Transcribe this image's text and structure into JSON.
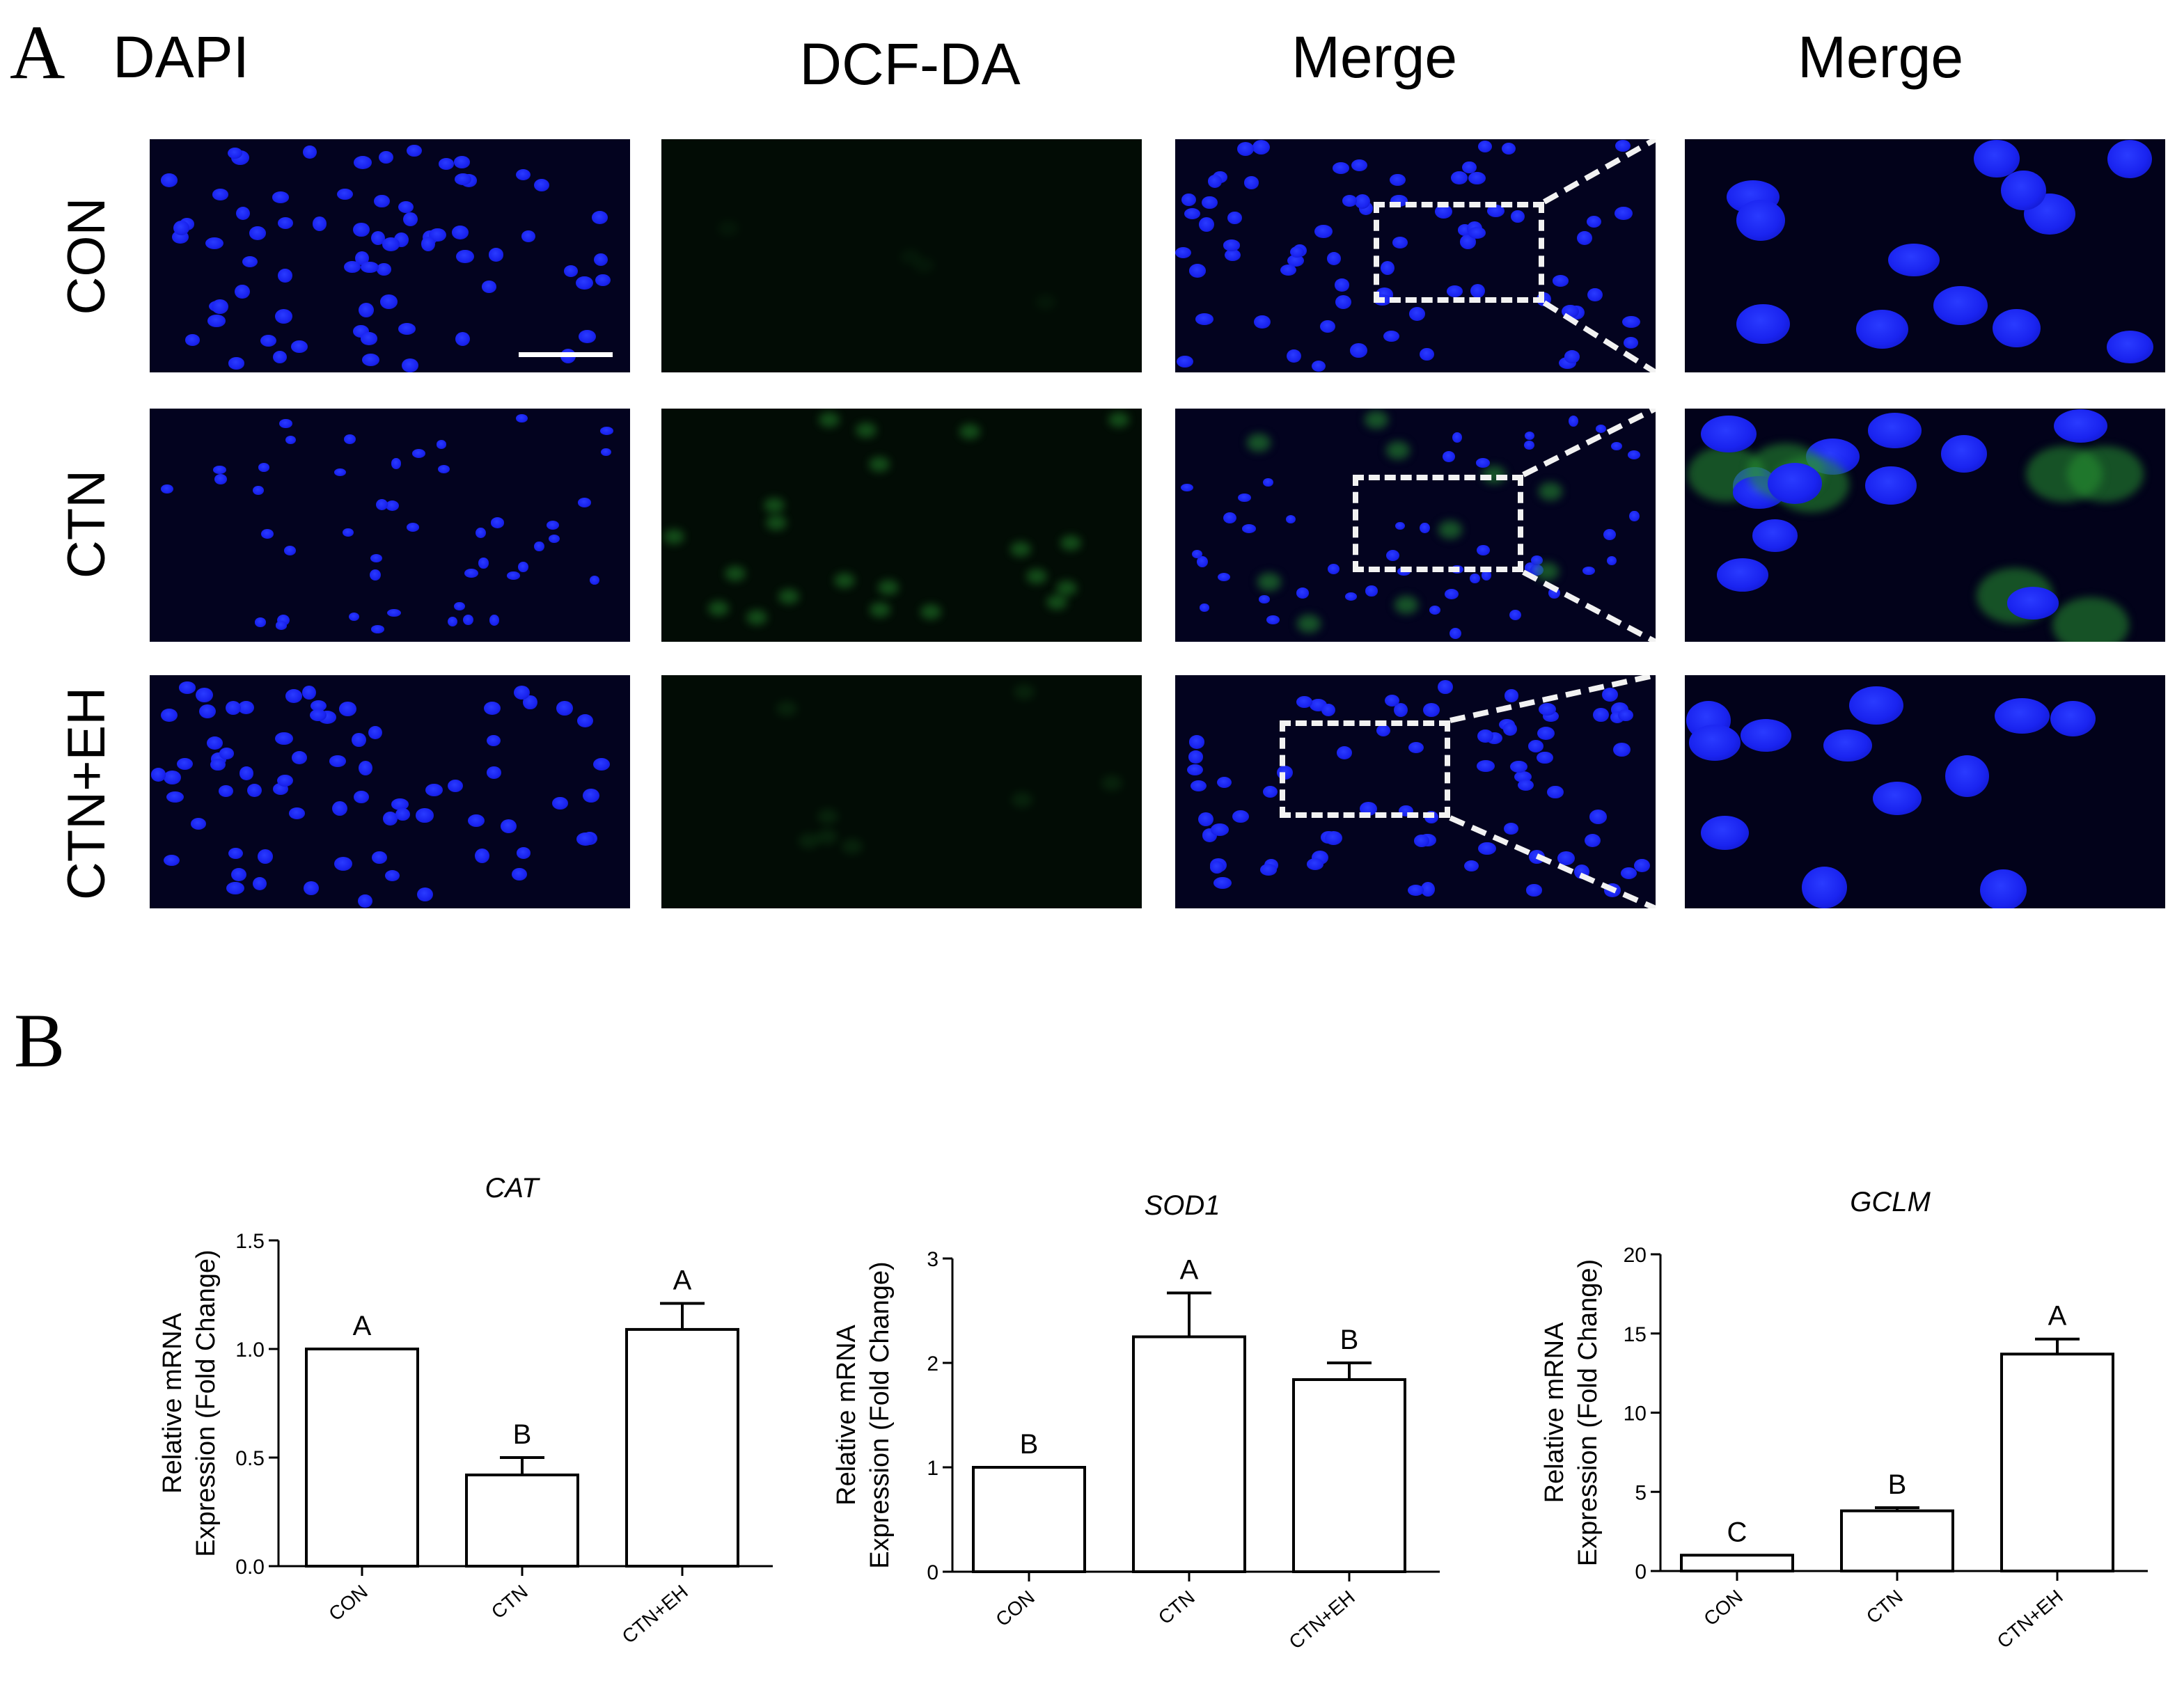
{
  "panel_a": {
    "label": "A",
    "columns": [
      "DAPI",
      "DCF-DA",
      "Merge",
      "Merge"
    ],
    "rows": [
      "CON",
      "CTN",
      "CTN+EH"
    ]
  },
  "panel_b": {
    "label": "B"
  },
  "colors": {
    "nucleus": "#1a24f0",
    "dcf_green": "#2a9632",
    "background": "#03031f"
  },
  "chart_data": [
    {
      "type": "bar",
      "title": "CAT",
      "ylabel": "Relative mRNA\nExpression (Fold Change)",
      "categories": [
        "CON",
        "CTN",
        "CTN+EH"
      ],
      "values": [
        1.0,
        0.42,
        1.09
      ],
      "errors": [
        0.0,
        0.08,
        0.12
      ],
      "letters": [
        "A",
        "B",
        "A"
      ],
      "ylim": [
        0,
        1.5
      ],
      "yticks": [
        "0.0",
        "0.5",
        "1.0",
        "1.5"
      ],
      "grid": false
    },
    {
      "type": "bar",
      "title": "SOD1",
      "ylabel": "Relative mRNA\nExpression (Fold Change)",
      "categories": [
        "CON",
        "CTN",
        "CTN+EH"
      ],
      "values": [
        1.0,
        2.25,
        1.84
      ],
      "errors": [
        0.0,
        0.42,
        0.16
      ],
      "letters": [
        "B",
        "A",
        "B"
      ],
      "ylim": [
        0,
        3
      ],
      "yticks": [
        "0",
        "1",
        "2",
        "3"
      ],
      "grid": false
    },
    {
      "type": "bar",
      "title": "GCLM",
      "ylabel": "Relative mRNA\nExpression (Fold Change)",
      "categories": [
        "CON",
        "CTN",
        "CTN+EH"
      ],
      "values": [
        1.0,
        3.8,
        13.7
      ],
      "errors": [
        0.0,
        0.2,
        0.95
      ],
      "letters": [
        "C",
        "B",
        "A"
      ],
      "ylim": [
        0,
        20
      ],
      "yticks": [
        "0",
        "5",
        "10",
        "15",
        "20"
      ],
      "grid": false
    }
  ]
}
